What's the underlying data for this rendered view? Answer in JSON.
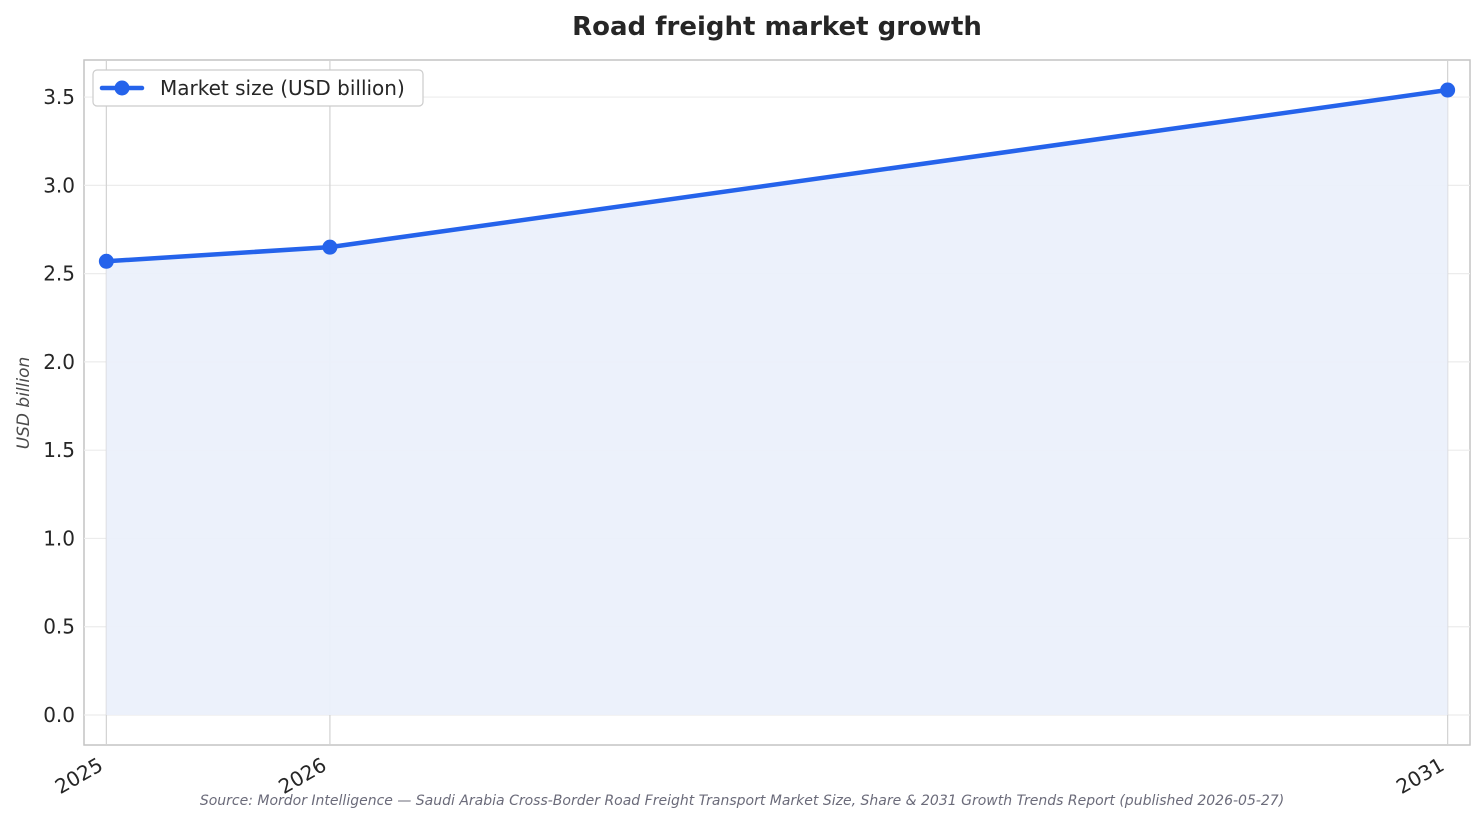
{
  "chart_data": {
    "type": "line",
    "title": "Road freight market growth",
    "xlabel": "",
    "ylabel": "USD billion",
    "x": [
      "2025",
      "2026",
      "2031"
    ],
    "x_numeric": [
      2025,
      2026,
      2031
    ],
    "series": [
      {
        "name": "Market size (USD billion)",
        "values": [
          2.57,
          2.65,
          3.54
        ],
        "color": "#2563eb",
        "fill_color": "#ebf0fb",
        "marker": "circle"
      }
    ],
    "ylim": [
      -0.17,
      3.71
    ],
    "xlim": [
      2024.9,
      2031.1
    ],
    "y_ticks": [
      0.0,
      0.5,
      1.0,
      1.5,
      2.0,
      2.5,
      3.0,
      3.5
    ],
    "y_tick_labels": [
      "0.0",
      "0.5",
      "1.0",
      "1.5",
      "2.0",
      "2.5",
      "3.0",
      "3.5"
    ],
    "x_tick_labels": [
      "2025",
      "2026",
      "2031"
    ],
    "grid": true,
    "legend_position": "top-left",
    "area_fill": true
  },
  "source_note": "Source: Mordor Intelligence — Saudi Arabia Cross-Border Road Freight Transport Market Size, Share & 2031 Growth Trends Report (published 2026-05-27)"
}
